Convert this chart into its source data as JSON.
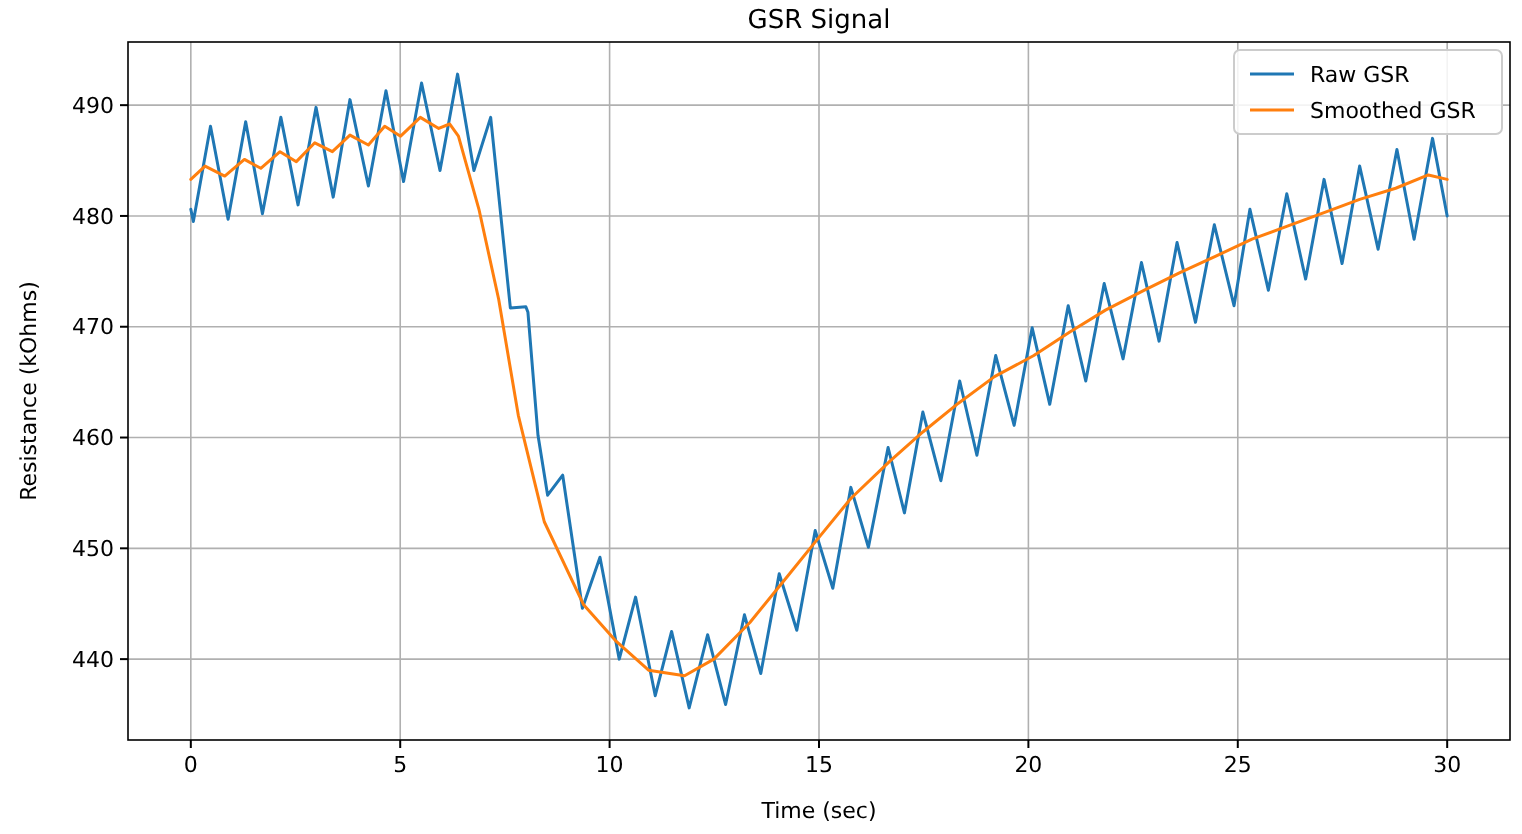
{
  "chart_data": {
    "type": "line",
    "title": "GSR Signal",
    "xlabel": "Time (sec)",
    "ylabel": "Resistance (kOhms)",
    "xlim": [
      -1.5,
      31.5
    ],
    "ylim": [
      432.7,
      495.7
    ],
    "xticks": [
      0,
      5,
      10,
      15,
      20,
      25,
      30
    ],
    "yticks": [
      440,
      450,
      460,
      470,
      480,
      490
    ],
    "grid": true,
    "legend": "top right",
    "line_style": "solid",
    "marker": "none",
    "series": [
      {
        "name": "Raw GSR",
        "color": "#1f77b4",
        "x": [
          0,
          0.06,
          0.47,
          0.89,
          1.31,
          1.71,
          2.15,
          2.56,
          2.99,
          3.4,
          3.8,
          4.24,
          4.66,
          5.08,
          5.51,
          5.95,
          6.37,
          6.76,
          7.16,
          7.63,
          8.0,
          8.05,
          8.29,
          8.52,
          8.88,
          9.35,
          9.77,
          10.23,
          10.62,
          11.09,
          11.48,
          11.9,
          12.34,
          12.77,
          13.22,
          13.61,
          14.05,
          14.47,
          14.91,
          15.33,
          15.76,
          16.18,
          16.65,
          17.04,
          17.48,
          17.91,
          18.36,
          18.77,
          19.22,
          19.66,
          20.09,
          20.51,
          20.95,
          21.37,
          21.81,
          22.26,
          22.7,
          23.12,
          23.55,
          23.99,
          24.44,
          24.91,
          25.29,
          25.73,
          26.17,
          26.62,
          27.06,
          27.49,
          27.91,
          28.35,
          28.8,
          29.21,
          29.65,
          30
        ],
        "values": [
          480.6,
          479.5,
          488.1,
          479.7,
          488.5,
          480.2,
          488.9,
          481.0,
          489.8,
          481.7,
          490.5,
          482.7,
          491.3,
          483.1,
          492.0,
          484.1,
          492.8,
          484.1,
          488.9,
          471.7,
          471.8,
          471.3,
          460.2,
          454.8,
          456.6,
          444.6,
          449.2,
          440.0,
          445.6,
          436.7,
          442.5,
          435.6,
          442.2,
          435.9,
          444.0,
          438.7,
          447.7,
          442.6,
          451.6,
          446.4,
          455.5,
          450.1,
          459.1,
          453.2,
          462.3,
          456.1,
          465.1,
          458.4,
          467.4,
          461.1,
          469.9,
          463.0,
          471.9,
          465.1,
          473.9,
          467.1,
          475.8,
          468.7,
          477.6,
          470.4,
          479.2,
          471.9,
          480.6,
          473.3,
          482.0,
          474.3,
          483.3,
          475.7,
          484.5,
          477.0,
          486.0,
          477.9,
          487.0,
          480.0
        ]
      },
      {
        "name": "Smoothed GSR",
        "color": "#ff7f0e",
        "x": [
          0,
          0.34,
          0.81,
          1.28,
          1.67,
          2.13,
          2.52,
          2.96,
          3.38,
          3.8,
          4.24,
          4.63,
          5.01,
          5.48,
          5.92,
          6.18,
          6.39,
          6.88,
          7.35,
          7.82,
          8.44,
          9.38,
          10.16,
          10.93,
          11.79,
          12.49,
          13.35,
          14.21,
          14.98,
          15.76,
          16.7,
          17.48,
          18.33,
          19.19,
          20.13,
          20.98,
          21.84,
          22.77,
          23.63,
          24.49,
          25.34,
          26.2,
          27.06,
          27.91,
          28.77,
          29.55,
          30
        ],
        "values": [
          483.3,
          484.5,
          483.6,
          485.1,
          484.3,
          485.8,
          484.9,
          486.6,
          485.8,
          487.3,
          486.4,
          488.1,
          487.2,
          488.9,
          487.9,
          488.3,
          487.2,
          480.6,
          472.5,
          462.0,
          452.4,
          444.9,
          441.6,
          439.0,
          438.5,
          440.0,
          443.3,
          447.3,
          450.9,
          454.5,
          457.9,
          460.5,
          463.1,
          465.5,
          467.4,
          469.5,
          471.5,
          473.3,
          474.9,
          476.4,
          477.9,
          479.1,
          480.3,
          481.5,
          482.5,
          483.7,
          483.3
        ]
      }
    ]
  }
}
